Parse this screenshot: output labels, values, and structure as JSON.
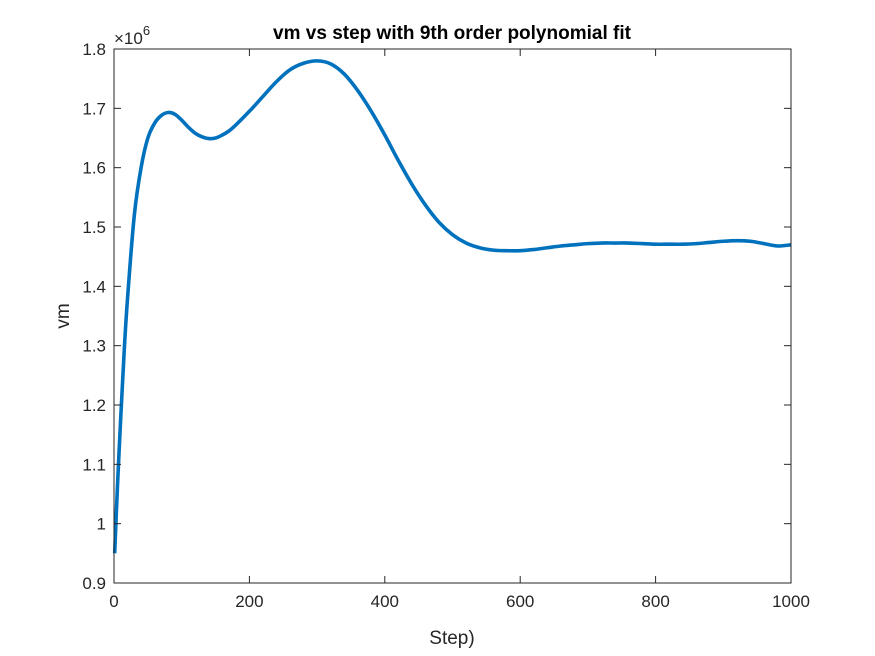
{
  "chart_data": {
    "type": "line",
    "title": "vm vs step with 9th order polynomial fit",
    "xlabel": "Step)",
    "ylabel": "vm",
    "y_exponent_base": "×10",
    "y_exponent_power": "6",
    "xlim": [
      0,
      1000
    ],
    "ylim": [
      0.9,
      1.8
    ],
    "y_scale_factor": 1000000,
    "x_ticks": [
      0,
      200,
      400,
      600,
      800,
      1000
    ],
    "x_tick_labels": [
      "0",
      "200",
      "400",
      "600",
      "800",
      "1000"
    ],
    "y_ticks": [
      0.9,
      1.0,
      1.1,
      1.2,
      1.3,
      1.4,
      1.5,
      1.6,
      1.7,
      1.8
    ],
    "y_tick_labels": [
      "0.9",
      "1",
      "1.1",
      "1.2",
      "1.3",
      "1.4",
      "1.5",
      "1.6",
      "1.7",
      "1.8"
    ],
    "grid": false,
    "box": true,
    "series": [
      {
        "color": "#0072BD",
        "x": [
          1,
          5,
          10,
          15,
          20,
          30,
          40,
          50,
          60,
          70,
          80,
          90,
          100,
          110,
          120,
          130,
          140,
          150,
          160,
          170,
          180,
          200,
          220,
          240,
          260,
          280,
          300,
          320,
          340,
          360,
          380,
          400,
          420,
          440,
          460,
          480,
          500,
          520,
          540,
          560,
          580,
          600,
          620,
          640,
          660,
          680,
          700,
          720,
          740,
          760,
          780,
          800,
          820,
          840,
          860,
          880,
          900,
          920,
          940,
          960,
          980,
          1000
        ],
        "y": [
          0.95,
          1.06,
          1.18,
          1.29,
          1.38,
          1.52,
          1.6,
          1.65,
          1.675,
          1.688,
          1.693,
          1.69,
          1.68,
          1.668,
          1.658,
          1.652,
          1.649,
          1.65,
          1.655,
          1.662,
          1.672,
          1.695,
          1.72,
          1.745,
          1.765,
          1.776,
          1.78,
          1.775,
          1.758,
          1.73,
          1.695,
          1.655,
          1.612,
          1.572,
          1.537,
          1.508,
          1.487,
          1.473,
          1.465,
          1.461,
          1.46,
          1.46,
          1.462,
          1.465,
          1.468,
          1.47,
          1.472,
          1.473,
          1.473,
          1.473,
          1.472,
          1.471,
          1.471,
          1.471,
          1.472,
          1.474,
          1.476,
          1.477,
          1.476,
          1.472,
          1.468,
          1.47
        ]
      }
    ]
  }
}
